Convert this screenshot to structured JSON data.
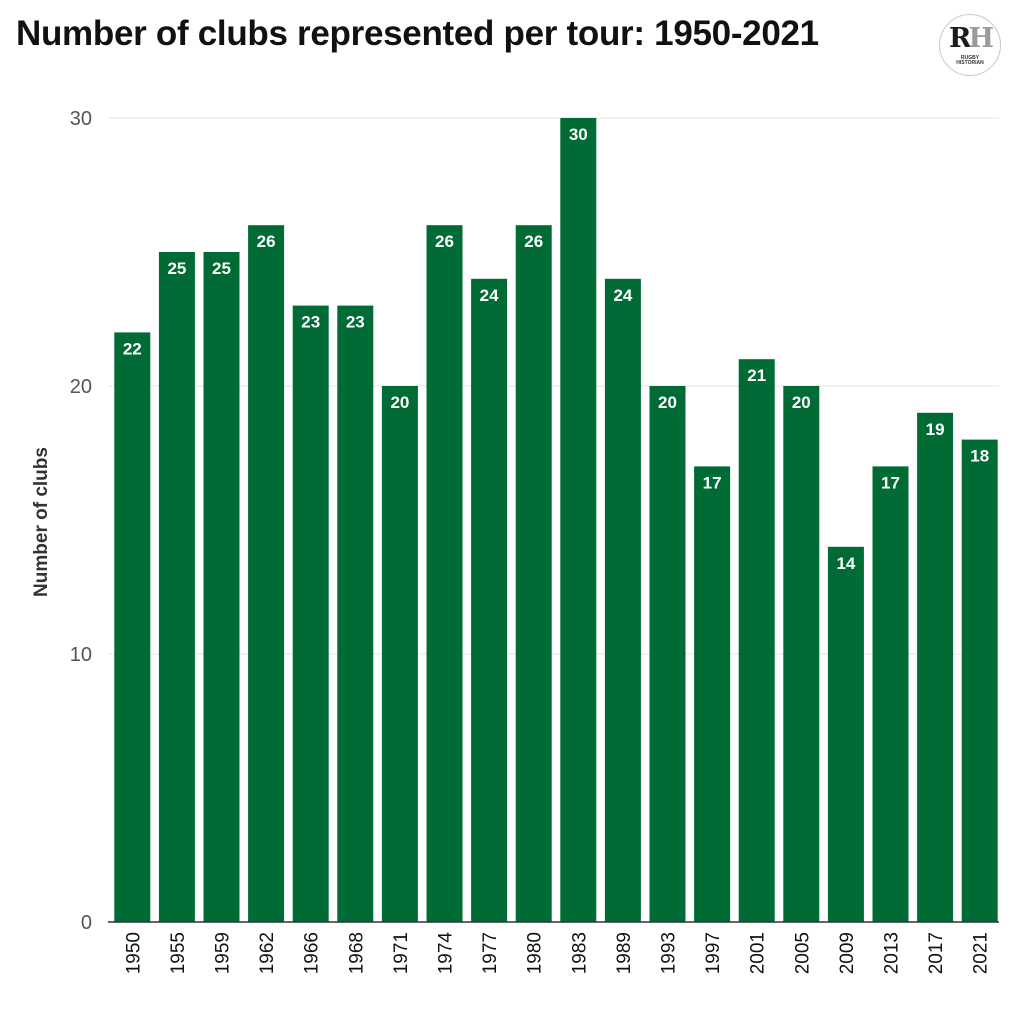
{
  "header": {
    "title": "Number of clubs represented per tour: 1950-2021"
  },
  "logo": {
    "mark_r": "R",
    "mark_h": "H",
    "subtitle_line1": "RUGBY",
    "subtitle_line2": "HISTORIAN"
  },
  "colors": {
    "bar": "#006b35",
    "grid": "#e3e3e3",
    "axis": "#333333"
  },
  "chart_data": {
    "type": "bar",
    "title": "Number of clubs represented per tour: 1950-2021",
    "xlabel": "",
    "ylabel": "Number of clubs",
    "ylim": [
      0,
      30
    ],
    "yticks": [
      0,
      10,
      20,
      30
    ],
    "grid": true,
    "categories": [
      "1950",
      "1955",
      "1959",
      "1962",
      "1966",
      "1968",
      "1971",
      "1974",
      "1977",
      "1980",
      "1983",
      "1989",
      "1993",
      "1997",
      "2001",
      "2005",
      "2009",
      "2013",
      "2017",
      "2021"
    ],
    "values": [
      22,
      25,
      25,
      26,
      23,
      23,
      20,
      26,
      24,
      26,
      30,
      24,
      20,
      17,
      21,
      20,
      14,
      17,
      19,
      18
    ],
    "data_labels": true,
    "x_tick_rotation": "vertical"
  }
}
